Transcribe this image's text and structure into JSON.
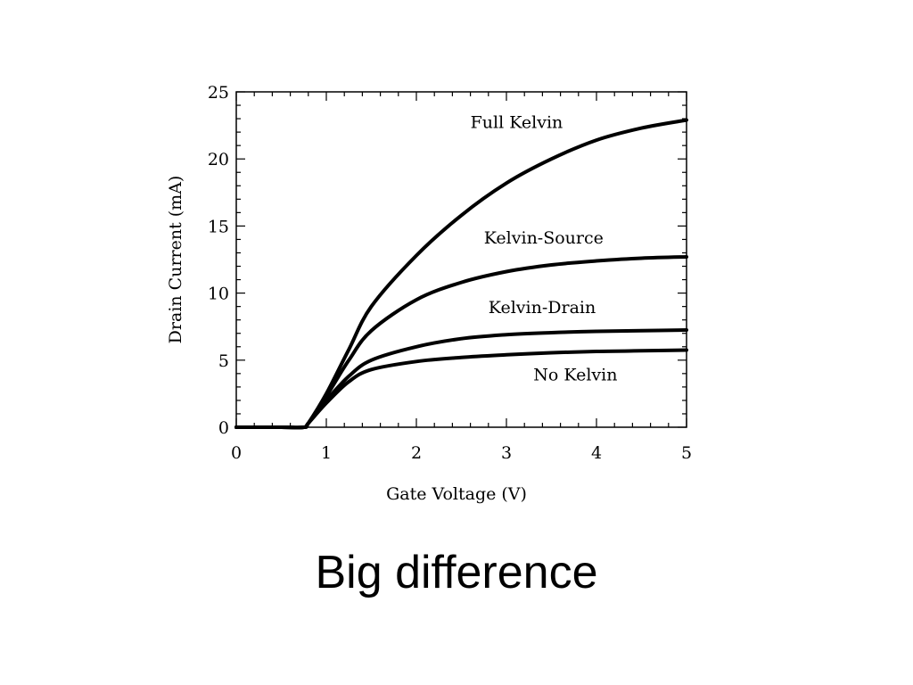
{
  "slide": {
    "caption": "Big difference"
  },
  "chart_data": {
    "type": "line",
    "title": "",
    "xlabel": "Gate Voltage (V)",
    "ylabel": "Drain Current (mA)",
    "xlim": [
      0,
      5
    ],
    "ylim": [
      0,
      25
    ],
    "x_ticks": [
      0,
      1,
      2,
      3,
      4,
      5
    ],
    "y_ticks": [
      0,
      5,
      10,
      15,
      20,
      25
    ],
    "grid": false,
    "legend": "none",
    "line_color": "#000000",
    "x": [
      0,
      0.5,
      0.75,
      0.8,
      1.0,
      1.25,
      1.5,
      2.0,
      2.5,
      3.0,
      3.5,
      4.0,
      4.5,
      5.0
    ],
    "series": [
      {
        "name": "Full Kelvin",
        "values": [
          0,
          0,
          0,
          0.3,
          2.5,
          5.8,
          9.0,
          12.8,
          15.8,
          18.2,
          20.0,
          21.4,
          22.3,
          22.9
        ]
      },
      {
        "name": "Kelvin-Source",
        "values": [
          0,
          0,
          0,
          0.3,
          2.3,
          5.0,
          7.2,
          9.5,
          10.8,
          11.6,
          12.1,
          12.4,
          12.6,
          12.7
        ]
      },
      {
        "name": "Kelvin-Drain",
        "values": [
          0,
          0,
          0,
          0.3,
          2.0,
          3.8,
          5.0,
          6.0,
          6.6,
          6.9,
          7.05,
          7.15,
          7.2,
          7.25
        ]
      },
      {
        "name": "No Kelvin",
        "values": [
          0,
          0,
          0,
          0.3,
          1.8,
          3.4,
          4.3,
          4.9,
          5.2,
          5.4,
          5.55,
          5.65,
          5.7,
          5.75
        ]
      }
    ],
    "annotations": [
      {
        "text": "Full Kelvin",
        "x": 2.6,
        "y": 22.3
      },
      {
        "text": "Kelvin-Source",
        "x": 2.75,
        "y": 13.7
      },
      {
        "text": "Kelvin-Drain",
        "x": 2.8,
        "y": 8.5
      },
      {
        "text": "No Kelvin",
        "x": 3.3,
        "y": 3.5
      }
    ]
  }
}
